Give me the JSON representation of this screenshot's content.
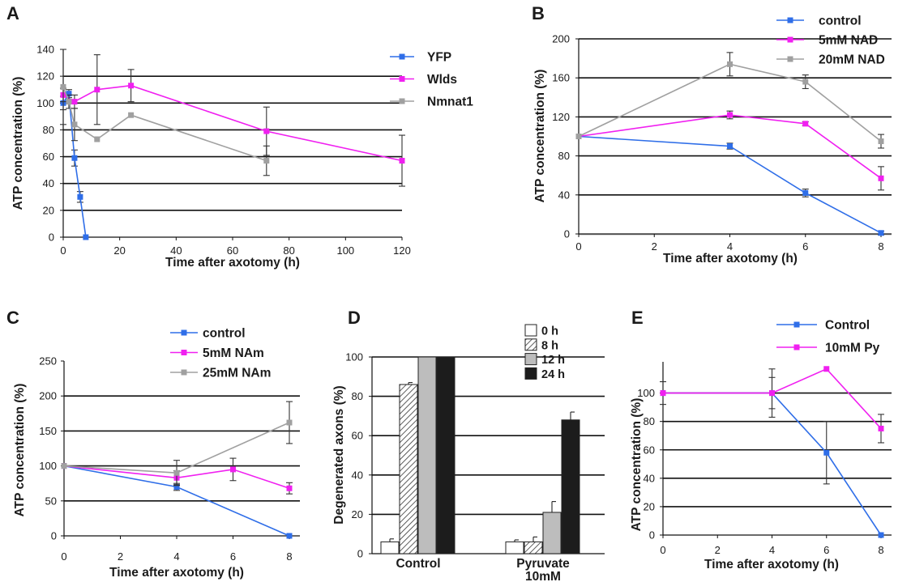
{
  "chart_data": [
    {
      "panel": "A",
      "type": "line",
      "xlabel": "Time after axotomy (h)",
      "ylabel": "ATP concentration (%)",
      "xlim": [
        0,
        120
      ],
      "ylim": [
        0,
        140
      ],
      "xticks": [
        0,
        20,
        40,
        60,
        80,
        100,
        120
      ],
      "yticks": [
        0,
        20,
        40,
        60,
        80,
        100,
        120,
        140
      ],
      "gridlines": [
        20,
        40,
        60,
        80,
        100,
        120
      ],
      "legend": "top-right",
      "series": [
        {
          "name": "YFP",
          "color": "#2f6ee8",
          "x": [
            0,
            2,
            4,
            6,
            8
          ],
          "y": [
            100,
            107,
            59,
            30,
            0
          ],
          "yerr": [
            5,
            3,
            6,
            4,
            0
          ]
        },
        {
          "name": "Wlds",
          "color": "#f020f0",
          "x": [
            0,
            4,
            12,
            24,
            72,
            120
          ],
          "y": [
            106,
            101,
            110,
            113,
            79,
            57
          ],
          "yerr": [
            5,
            5,
            26,
            12,
            18,
            19
          ]
        },
        {
          "name": "Nmnat1",
          "color": "#a0a0a0",
          "x": [
            0,
            2,
            4,
            12,
            24,
            72
          ],
          "y": [
            112,
            101,
            84,
            73,
            91,
            57
          ],
          "yerr": [
            28,
            5,
            12,
            0,
            0,
            11
          ]
        }
      ]
    },
    {
      "panel": "B",
      "type": "line",
      "xlabel": "Time after axotomy (h)",
      "ylabel": "ATP concentration (%)",
      "xlim": [
        0,
        8
      ],
      "ylim": [
        0,
        200
      ],
      "xticks": [
        0,
        2,
        4,
        6,
        8
      ],
      "yticks": [
        0,
        40,
        80,
        120,
        160,
        200
      ],
      "gridlines": [
        40,
        80,
        120,
        160,
        200
      ],
      "legend": "top-right",
      "series": [
        {
          "name": "control",
          "color": "#2f6ee8",
          "x": [
            0,
            4,
            6,
            8
          ],
          "y": [
            100,
            90,
            42,
            1
          ],
          "yerr": [
            0,
            3,
            4,
            2
          ]
        },
        {
          "name": "5mM NAD",
          "color": "#f020f0",
          "x": [
            0,
            4,
            6,
            8
          ],
          "y": [
            100,
            122,
            113,
            57
          ],
          "yerr": [
            0,
            4,
            2,
            12
          ]
        },
        {
          "name": "20mM NAD",
          "color": "#a0a0a0",
          "x": [
            0,
            4,
            6,
            8
          ],
          "y": [
            100,
            174,
            156,
            95
          ],
          "yerr": [
            0,
            12,
            7,
            7
          ]
        }
      ]
    },
    {
      "panel": "C",
      "type": "line",
      "xlabel": "Time after axotomy (h)",
      "ylabel": "ATP concentration (%)",
      "xlim": [
        0,
        8
      ],
      "ylim": [
        0,
        250
      ],
      "xticks": [
        0,
        2,
        4,
        6,
        8
      ],
      "yticks": [
        0,
        50,
        100,
        150,
        200,
        250
      ],
      "gridlines": [
        50,
        100,
        150,
        200
      ],
      "legend": "top-right",
      "series": [
        {
          "name": "control",
          "color": "#2f6ee8",
          "x": [
            0,
            4,
            8
          ],
          "y": [
            100,
            70,
            0
          ],
          "yerr": [
            0,
            5,
            0
          ]
        },
        {
          "name": "5mM NAm",
          "color": "#f020f0",
          "x": [
            0,
            4,
            6,
            8
          ],
          "y": [
            100,
            83,
            95,
            68
          ],
          "yerr": [
            0,
            10,
            16,
            8
          ]
        },
        {
          "name": "25mM NAm",
          "color": "#a0a0a0",
          "x": [
            0,
            4,
            8
          ],
          "y": [
            100,
            90,
            162
          ],
          "yerr": [
            0,
            18,
            30
          ]
        }
      ]
    },
    {
      "panel": "D",
      "type": "bar",
      "xlabel": "",
      "ylabel": "Degenerated axons (%)",
      "ylim": [
        0,
        100
      ],
      "yticks": [
        0,
        20,
        40,
        60,
        80,
        100
      ],
      "gridlines": [
        20,
        40,
        60,
        80,
        100
      ],
      "legend": "top-right",
      "categories": [
        "Control",
        "Pyruvate 10mM"
      ],
      "category_labels": [
        [
          "Control"
        ],
        [
          "Pyruvate",
          "10mM"
        ]
      ],
      "series": [
        {
          "name": "0 h",
          "fill": "#ffffff",
          "pattern": "solid",
          "values": [
            6,
            6
          ],
          "yerr": [
            1.5,
            1
          ]
        },
        {
          "name": "8 h",
          "fill": "#ffffff",
          "pattern": "hatched",
          "values": [
            86,
            6
          ],
          "yerr": [
            1,
            2.5
          ]
        },
        {
          "name": "12 h",
          "fill": "#bdbdbd",
          "pattern": "solid",
          "values": [
            100,
            21
          ],
          "yerr": [
            0,
            5.5
          ]
        },
        {
          "name": "24 h",
          "fill": "#1c1c1c",
          "pattern": "solid",
          "values": [
            100,
            68
          ],
          "yerr": [
            0,
            4
          ]
        }
      ]
    },
    {
      "panel": "E",
      "type": "line",
      "xlabel": "Time after axotomy (h)",
      "ylabel": "ATP concentration (%)",
      "xlim": [
        0,
        8
      ],
      "ylim": [
        0,
        122
      ],
      "xticks": [
        0,
        2,
        4,
        6,
        8
      ],
      "yticks": [
        0,
        20,
        40,
        60,
        80,
        100
      ],
      "gridlines": [
        20,
        40,
        60,
        80,
        100
      ],
      "legend": "top-right",
      "series": [
        {
          "name": "Control",
          "color": "#2f6ee8",
          "x": [
            0,
            4,
            6,
            8
          ],
          "y": [
            100,
            100,
            58,
            0
          ],
          "yerr": [
            8,
            17,
            22,
            0
          ]
        },
        {
          "name": "10mM Py",
          "color": "#f020f0",
          "x": [
            0,
            4,
            6,
            8
          ],
          "y": [
            100,
            100,
            117,
            75
          ],
          "yerr": [
            0,
            11,
            0,
            10
          ]
        }
      ]
    }
  ]
}
